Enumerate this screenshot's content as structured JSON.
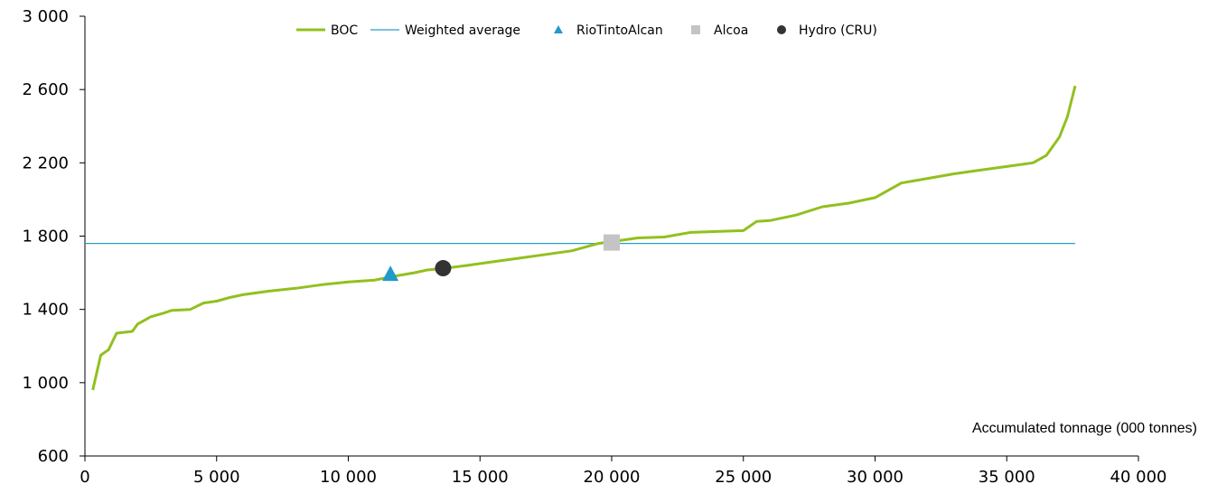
{
  "chart_data": {
    "type": "line",
    "xlabel": "Accumulated tonnage (000 tonnes)",
    "ylabel": "",
    "xlim": [
      0,
      40000
    ],
    "ylim": [
      600,
      3000
    ],
    "x_ticks": [
      "0",
      "5 000",
      "10 000",
      "15 000",
      "20 000",
      "25 000",
      "30 000",
      "35 000",
      "40 000"
    ],
    "y_ticks": [
      "600",
      "1 000",
      "1 400",
      "1 800",
      "2 200",
      "2 600",
      "3 000"
    ],
    "grid": false,
    "legend_position": "top-center",
    "series": [
      {
        "name": "BOC",
        "kind": "line",
        "color": "#92c01f",
        "x": [
          300,
          600,
          900,
          1200,
          1500,
          1800,
          2000,
          2500,
          3000,
          3300,
          4000,
          4500,
          5000,
          5500,
          6000,
          7000,
          8000,
          9000,
          10000,
          11000,
          11700,
          12500,
          13000,
          13700,
          14500,
          15500,
          16500,
          17500,
          18500,
          19500,
          20000,
          21000,
          22000,
          23000,
          24000,
          25000,
          25500,
          26000,
          27000,
          28000,
          29000,
          30000,
          31000,
          32000,
          33000,
          34000,
          35000,
          36000,
          36500,
          37000,
          37300,
          37600
        ],
        "y": [
          960,
          1150,
          1180,
          1270,
          1275,
          1280,
          1320,
          1360,
          1380,
          1395,
          1400,
          1435,
          1445,
          1465,
          1480,
          1500,
          1515,
          1535,
          1550,
          1560,
          1580,
          1600,
          1615,
          1625,
          1640,
          1660,
          1680,
          1700,
          1720,
          1760,
          1770,
          1790,
          1795,
          1820,
          1825,
          1830,
          1880,
          1885,
          1915,
          1960,
          1980,
          2010,
          2090,
          2115,
          2140,
          2160,
          2180,
          2200,
          2240,
          2340,
          2450,
          2620
        ]
      },
      {
        "name": "Weighted average",
        "kind": "hline",
        "color": "#2a9dc9",
        "x": [
          0,
          37600
        ],
        "y": [
          1760,
          1760
        ]
      },
      {
        "name": "RioTintoAlcan",
        "kind": "marker",
        "marker": "triangle",
        "color": "#1f9acb",
        "x": [
          11600
        ],
        "y": [
          1590
        ]
      },
      {
        "name": "Alcoa",
        "kind": "marker",
        "marker": "square",
        "color": "#c4c4c4",
        "x": [
          20000
        ],
        "y": [
          1765
        ]
      },
      {
        "name": "Hydro (CRU)",
        "kind": "marker",
        "marker": "circle",
        "color": "#333333",
        "x": [
          13600
        ],
        "y": [
          1625
        ]
      }
    ]
  }
}
